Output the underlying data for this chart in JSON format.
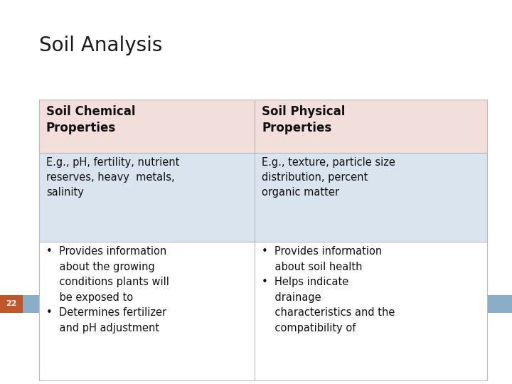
{
  "title": "Soil Analysis",
  "slide_number": "22",
  "background_color": "#ffffff",
  "title_color": "#1a1a1a",
  "title_fontsize": 20,
  "bar_color_orange": "#C0572A",
  "bar_color_steel": "#8AAEC8",
  "slide_num_color": "#ffffff",
  "header_bg": "#F2DEDA",
  "row1_bg": "#D9E4EF",
  "row2_bg": "#ffffff",
  "col1_header": "Soil Chemical\nProperties",
  "col2_header": "Soil Physical\nProperties",
  "col1_row1": "E.g., pH, fertility, nutrient\nreserves, heavy  metals,\nsalinity",
  "col2_row1": "E.g., texture, particle size\ndistribution, percent\norganic matter",
  "col1_row2": "•  Provides information\n    about the growing\n    conditions plants will\n    be exposed to\n•  Determines fertilizer\n    and pH adjustment",
  "col2_row2": "•  Provides information\n    about soil health\n•  Helps indicate\n    drainage\n    characteristics and the\n    compatibility of",
  "header_fontsize": 12,
  "body_fontsize": 10.5,
  "border_color": "#bbbbbb",
  "fig_w": 7.2,
  "fig_h": 5.4,
  "dpi": 100
}
